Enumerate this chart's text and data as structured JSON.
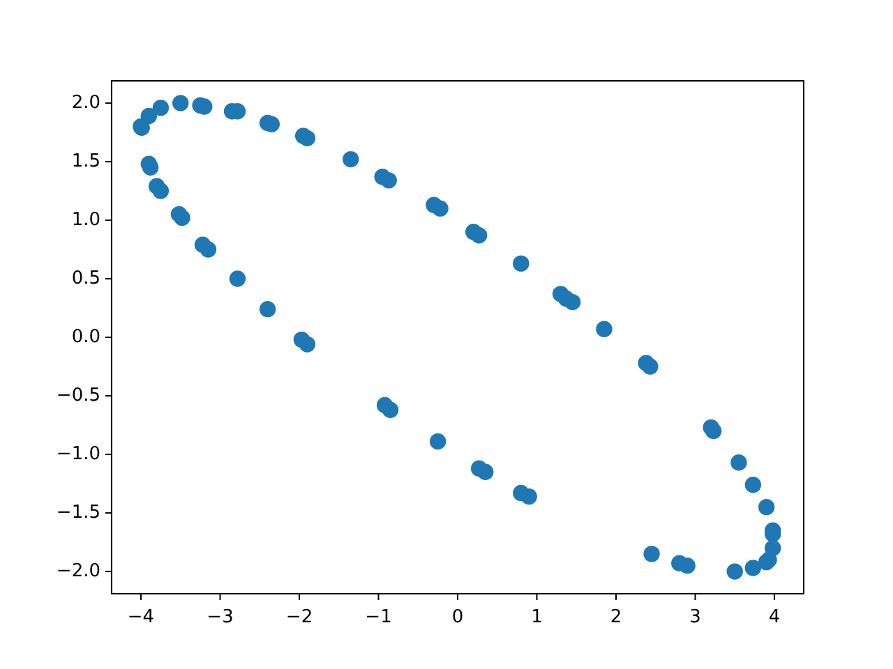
{
  "chart_data": {
    "type": "scatter",
    "marker": "circle",
    "grid": false,
    "xlim": [
      -4.37,
      4.37
    ],
    "ylim": [
      -2.19,
      2.19
    ],
    "xticks": [
      {
        "value": -4,
        "label": "−4"
      },
      {
        "value": -3,
        "label": "−3"
      },
      {
        "value": -2,
        "label": "−2"
      },
      {
        "value": -1,
        "label": "−1"
      },
      0,
      1,
      2,
      3,
      4
    ],
    "yticks": [
      {
        "value": -2,
        "label": "−2.0"
      },
      {
        "value": -1.5,
        "label": "−1.5"
      },
      {
        "value": -1,
        "label": "−1.0"
      },
      {
        "value": -0.5,
        "label": "−0.5"
      },
      {
        "value": 0,
        "label": "0.0"
      },
      {
        "value": 0.5,
        "label": "0.5"
      },
      {
        "value": 1,
        "label": "1.0"
      },
      {
        "value": 1.5,
        "label": "1.5"
      },
      {
        "value": 2,
        "label": "2.0"
      }
    ],
    "series": [
      {
        "color": "#1f77b4",
        "x": [
          -4.0,
          -3.99,
          -3.9,
          -3.75,
          -3.5,
          -3.25,
          -3.2,
          -2.85,
          -2.78,
          -2.4,
          -2.35,
          -1.95,
          -1.9,
          -1.35,
          -0.95,
          -0.87,
          -0.3,
          -0.22,
          0.2,
          0.27,
          0.8,
          1.3,
          1.37,
          1.45,
          1.85,
          2.38,
          2.43,
          3.2,
          3.23,
          3.55,
          3.73,
          3.9,
          3.98,
          3.98,
          3.98,
          3.93,
          3.9,
          3.73,
          3.5,
          2.9,
          2.8,
          2.45,
          0.9,
          0.8,
          0.35,
          0.27,
          -0.25,
          -0.85,
          -0.92,
          -1.9,
          -1.97,
          -2.4,
          -2.78,
          -3.15,
          -3.22,
          -3.48,
          -3.52,
          -3.75,
          -3.8,
          -3.88,
          -3.9
        ],
        "values": [
          1.8,
          1.79,
          1.89,
          1.96,
          2.0,
          1.98,
          1.97,
          1.93,
          1.93,
          1.83,
          1.82,
          1.72,
          1.7,
          1.52,
          1.37,
          1.34,
          1.13,
          1.1,
          0.9,
          0.87,
          0.63,
          0.37,
          0.33,
          0.3,
          0.07,
          -0.22,
          -0.25,
          -0.77,
          -0.8,
          -1.07,
          -1.26,
          -1.45,
          -1.65,
          -1.68,
          -1.8,
          -1.9,
          -1.92,
          -1.97,
          -2.0,
          -1.95,
          -1.93,
          -1.85,
          -1.36,
          -1.33,
          -1.15,
          -1.12,
          -0.89,
          -0.62,
          -0.58,
          -0.06,
          -0.02,
          0.24,
          0.5,
          0.75,
          0.79,
          1.02,
          1.05,
          1.25,
          1.29,
          1.45,
          1.48
        ]
      }
    ]
  }
}
